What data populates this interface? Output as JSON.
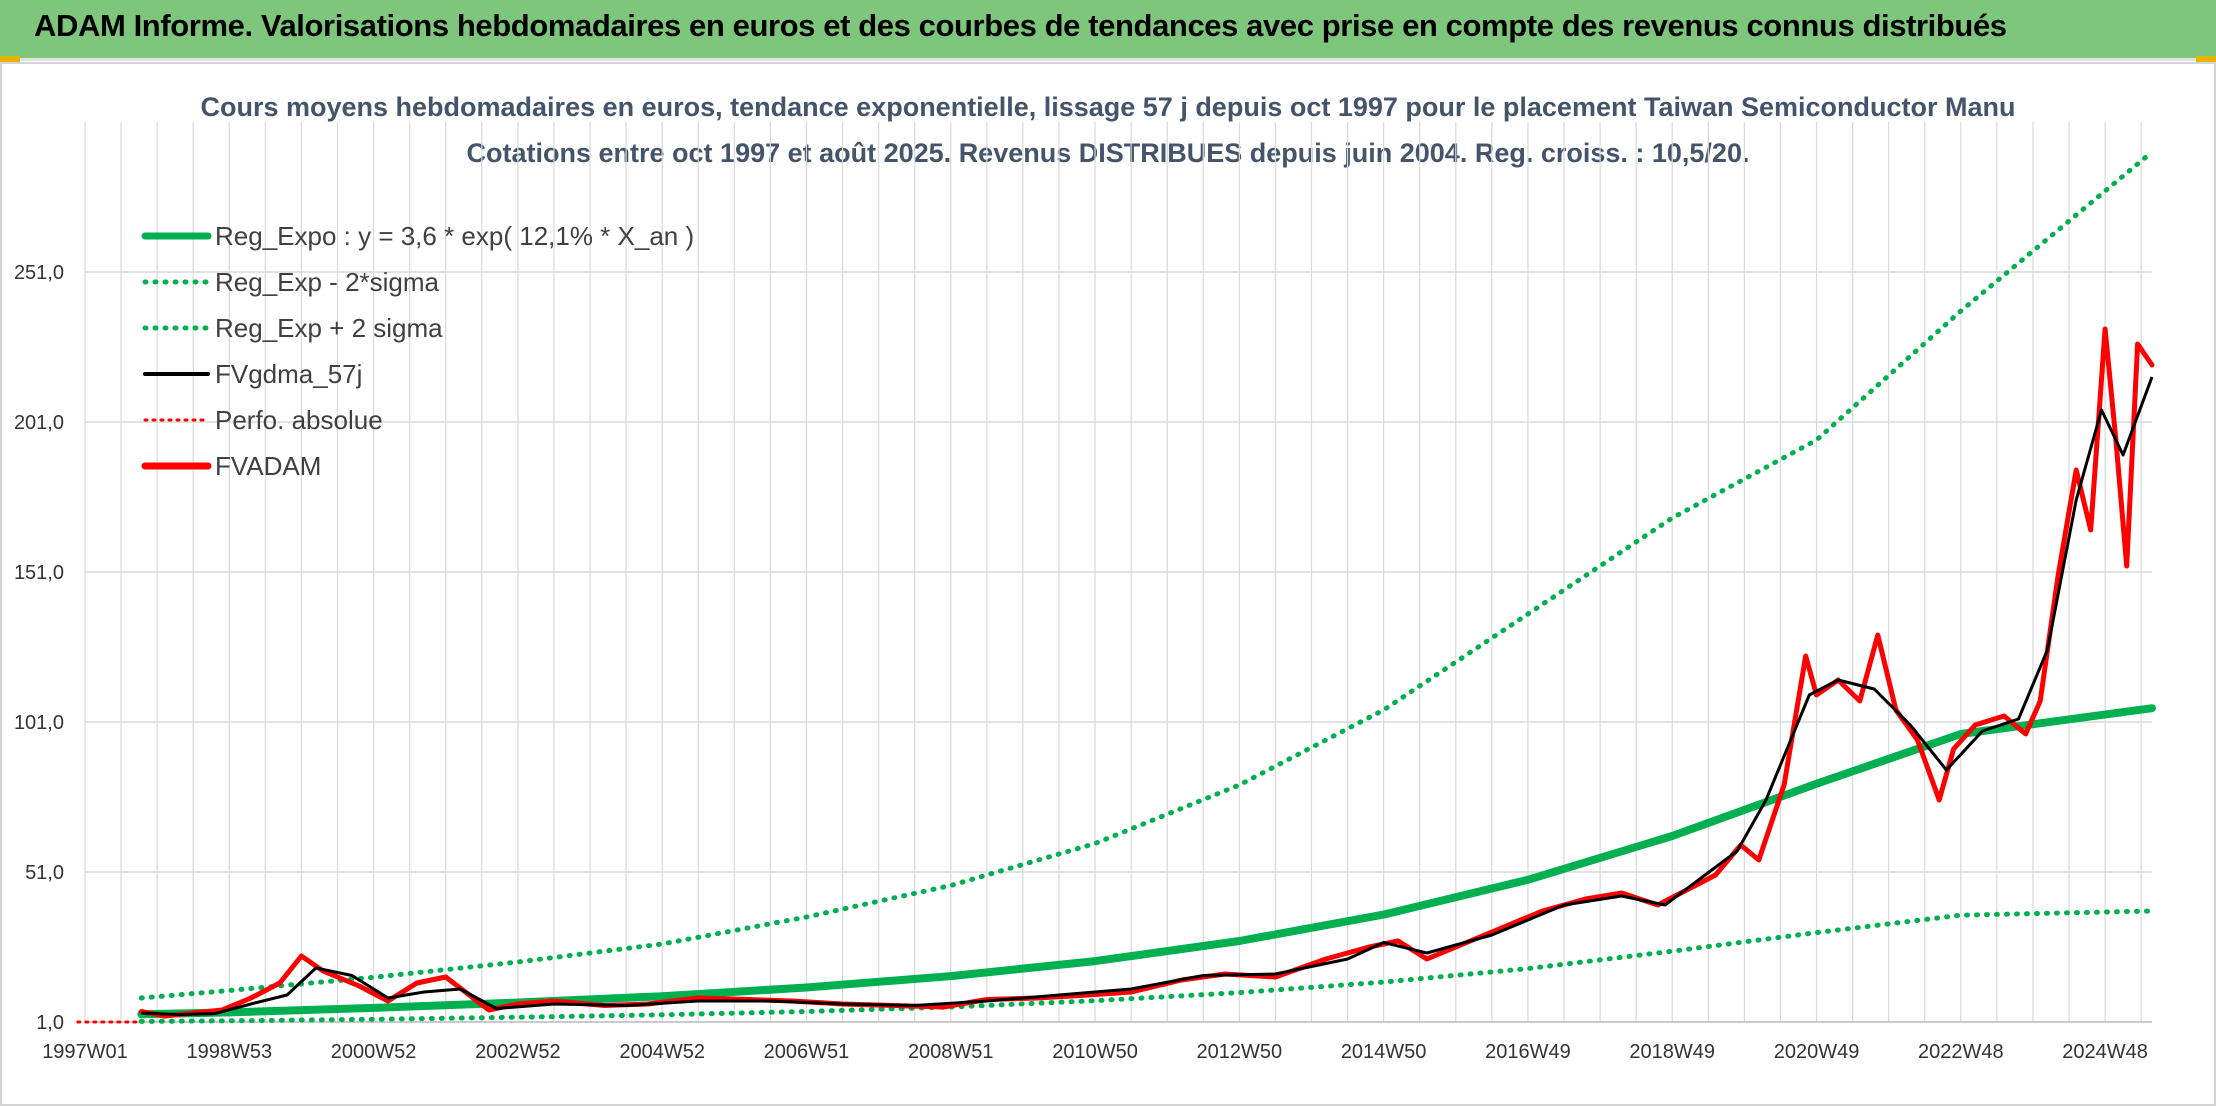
{
  "header": {
    "banner_title": "ADAM Informe. Valorisations hebdomadaires en euros et des courbes de tendances avec prise en compte des revenus connus distribués"
  },
  "colors": {
    "banner": "#7dc67b",
    "title_text": "#44546a",
    "green": "#00b050",
    "red": "#ff0000",
    "black": "#000000",
    "grid": "#d9d9d9"
  },
  "chart_data": {
    "type": "line",
    "title": "Cours moyens hebdomadaires en euros, tendance exponentielle, lissage 57 j depuis oct 1997 pour le placement Taiwan Semiconductor Manu",
    "subtitle": "Cotations entre oct 1997 et août 2025. Revenus DISTRIBUES depuis juin 2004. Reg. croiss. : 10,5/20.",
    "xlabel": "",
    "ylabel": "",
    "x_ticks": [
      "1997W01",
      "1998W53",
      "2000W52",
      "2002W52",
      "2004W52",
      "2006W51",
      "2008W51",
      "2010W50",
      "2012W50",
      "2014W50",
      "2016W49",
      "2018W49",
      "2020W49",
      "2022W48",
      "2024W48"
    ],
    "y_ticks": [
      "1,0",
      "51,0",
      "101,0",
      "151,0",
      "201,0",
      "251,0"
    ],
    "ylim": [
      1,
      301
    ],
    "grid": true,
    "legend_position": "top-left",
    "legend": [
      {
        "label": "Reg_Expo : y = 3,6 * exp( 12,1% *  X_an )",
        "style": "solid-thick",
        "color": "#00b050"
      },
      {
        "label": "Reg_Exp - 2*sigma",
        "style": "dotted",
        "color": "#00b050"
      },
      {
        "label": "Reg_Exp + 2 sigma",
        "style": "dotted",
        "color": "#00b050"
      },
      {
        "label": "FVgdma_57j",
        "style": "solid",
        "color": "#000000"
      },
      {
        "label": "Perfo. absolue",
        "style": "dotted",
        "color": "#ff0000"
      },
      {
        "label": "FVADAM",
        "style": "solid-thick",
        "color": "#ff0000"
      }
    ],
    "x_years": [
      1997.0,
      2025.65
    ],
    "series": [
      {
        "name": "Reg_Expo : y = 3,6 * exp( 12,1% *  X_an )",
        "style": "solid-thick",
        "x": [
          1997.78,
          1999,
          2001,
          2003,
          2005,
          2007,
          2009,
          2011,
          2013,
          2015,
          2017,
          2019,
          2021,
          2023,
          2025.65
        ],
        "values": [
          3.6,
          4.2,
          5.7,
          7.5,
          9.6,
          12.5,
          16.3,
          21.3,
          28.0,
          36.8,
          48.4,
          63.0,
          80.4,
          97.0,
          105.6
        ]
      },
      {
        "name": "Reg_Exp - 2*sigma",
        "style": "dotted",
        "x": [
          1997.78,
          1999,
          2001,
          2003,
          2005,
          2007,
          2009,
          2011,
          2013,
          2015,
          2017,
          2019,
          2021,
          2023,
          2025.65
        ],
        "values": [
          1.2,
          1.4,
          1.9,
          2.6,
          3.4,
          4.5,
          6.0,
          8.1,
          10.8,
          14.3,
          18.8,
          24.6,
          30.8,
          36.6,
          38.0
        ]
      },
      {
        "name": "Reg_Exp + 2 sigma",
        "style": "dotted",
        "x": [
          1997.78,
          1999,
          2001,
          2003,
          2005,
          2007,
          2009,
          2011,
          2013,
          2015,
          2017,
          2019,
          2021,
          2023,
          2025.65
        ],
        "values": [
          9.0,
          11.5,
          15.9,
          21.0,
          27.0,
          36.0,
          46.5,
          60.5,
          80.0,
          105.0,
          137.0,
          169.0,
          195.0,
          238.0,
          291.0
        ]
      },
      {
        "name": "FVgdma_57j",
        "style": "solid",
        "x": [
          1997.78,
          1998.3,
          1998.8,
          1999.3,
          1999.8,
          2000.2,
          2000.7,
          2001.2,
          2001.7,
          2002.2,
          2002.7,
          2003.5,
          2004.5,
          2005.5,
          2006.5,
          2007.5,
          2008.5,
          2009.5,
          2010.5,
          2011.5,
          2012.5,
          2013.5,
          2014.5,
          2015.0,
          2015.6,
          2016.5,
          2017.5,
          2018.3,
          2018.9,
          2019.4,
          2019.9,
          2020.3,
          2020.9,
          2021.3,
          2021.8,
          2022.3,
          2022.8,
          2023.3,
          2023.8,
          2024.2,
          2024.6,
          2024.95,
          2025.25,
          2025.65
        ],
        "values": [
          4.0,
          3.5,
          3.8,
          7.0,
          10.0,
          19.0,
          16.5,
          9.0,
          11.0,
          12.0,
          5.5,
          7.0,
          6.5,
          8.0,
          8.0,
          7.0,
          6.5,
          8.0,
          10.0,
          12.0,
          16.5,
          17.0,
          22.0,
          27.5,
          24.0,
          30.0,
          40.0,
          43.0,
          40.0,
          49.0,
          58.0,
          75.0,
          110.0,
          115.0,
          112.0,
          100.0,
          85.0,
          98.0,
          102.0,
          125.0,
          175.0,
          205.0,
          190.0,
          216.0
        ]
      },
      {
        "name": "Perfo. absolue",
        "style": "dotted",
        "x": [
          1996.9,
          1997.78
        ],
        "values": [
          1.0,
          1.0
        ]
      },
      {
        "name": "FVADAM",
        "style": "solid-thick",
        "x": [
          1997.78,
          1998.1,
          1998.5,
          1998.9,
          1999.3,
          1999.7,
          2000.0,
          2000.3,
          2000.8,
          2001.2,
          2001.6,
          2002.0,
          2002.6,
          2003.0,
          2003.5,
          2004.2,
          2004.8,
          2005.5,
          2006.2,
          2006.8,
          2007.5,
          2008.2,
          2008.9,
          2009.5,
          2010.2,
          2010.9,
          2011.5,
          2012.2,
          2012.8,
          2013.5,
          2014.2,
          2014.8,
          2015.2,
          2015.6,
          2016.0,
          2016.6,
          2017.2,
          2017.8,
          2018.3,
          2018.8,
          2019.2,
          2019.6,
          2019.95,
          2020.2,
          2020.55,
          2020.85,
          2021.0,
          2021.3,
          2021.6,
          2021.85,
          2022.1,
          2022.4,
          2022.7,
          2022.9,
          2023.2,
          2023.6,
          2023.9,
          2024.1,
          2024.35,
          2024.6,
          2024.8,
          2025.0,
          2025.15,
          2025.3,
          2025.45,
          2025.65
        ],
        "values": [
          4.5,
          3.0,
          4.0,
          5.0,
          9.0,
          14.0,
          23.0,
          18.0,
          13.0,
          8.0,
          14.0,
          16.0,
          5.0,
          7.0,
          8.0,
          6.5,
          7.0,
          9.0,
          8.5,
          8.0,
          7.0,
          6.5,
          6.0,
          8.5,
          9.0,
          10.0,
          11.0,
          15.0,
          17.0,
          16.0,
          22.0,
          26.0,
          28.0,
          22.0,
          26.0,
          32.0,
          38.0,
          42.0,
          44.0,
          40.0,
          45.0,
          50.0,
          60.0,
          55.0,
          80.0,
          123.0,
          110.0,
          115.0,
          108.0,
          130.0,
          105.0,
          95.0,
          75.0,
          92.0,
          100.0,
          103.0,
          97.0,
          108.0,
          150.0,
          185.0,
          165.0,
          232.0,
          195.0,
          153.0,
          227.0,
          220.0
        ]
      }
    ]
  }
}
